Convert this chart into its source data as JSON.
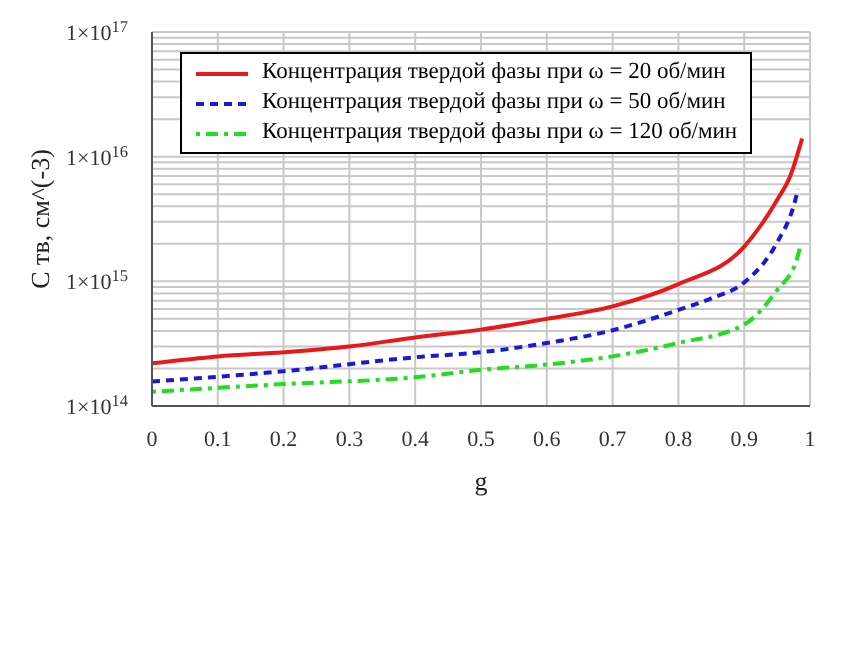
{
  "chart_data": {
    "type": "line",
    "xlabel": "g",
    "ylabel": "C тв, см^(-3)",
    "log": "y",
    "grid": true,
    "legend": "top left",
    "marker": "none",
    "xlim": [
      0,
      1
    ],
    "xticks": [
      0,
      0.1,
      0.2,
      0.3,
      0.4,
      0.5,
      0.6,
      0.7,
      0.8,
      0.9,
      1
    ],
    "ylim": [
      100000000000000.0,
      1e+17
    ],
    "yticks": [
      {
        "value": 100000000000000.0,
        "label": "1×10$^{14}$"
      },
      {
        "value": 200000000000000.0,
        "label": null
      },
      {
        "value": 300000000000000.0,
        "label": null
      },
      {
        "value": 400000000000000.0,
        "label": null
      },
      {
        "value": 500000000000000.0,
        "label": null
      },
      {
        "value": 600000000000000.0,
        "label": null
      },
      {
        "value": 700000000000000.0,
        "label": null
      },
      {
        "value": 800000000000000.0,
        "label": null
      },
      {
        "value": 900000000000000.0,
        "label": null
      },
      {
        "value": 1000000000000000.0,
        "label": "1×10$^{15}$"
      },
      {
        "value": 2000000000000000.0,
        "label": null
      },
      {
        "value": 3000000000000000.0,
        "label": null
      },
      {
        "value": 4000000000000000.0,
        "label": null
      },
      {
        "value": 5000000000000000.0,
        "label": null
      },
      {
        "value": 6000000000000000.0,
        "label": null
      },
      {
        "value": 7000000000000000.0,
        "label": null
      },
      {
        "value": 8000000000000000.0,
        "label": null
      },
      {
        "value": 9000000000000000.0,
        "label": null
      },
      {
        "value": 1e+16,
        "label": "1×10$^{16}$"
      },
      {
        "value": 2e+16,
        "label": null
      },
      {
        "value": 3e+16,
        "label": null
      },
      {
        "value": 4e+16,
        "label": null
      },
      {
        "value": 5e+16,
        "label": null
      },
      {
        "value": 6e+16,
        "label": null
      },
      {
        "value": 7e+16,
        "label": null
      },
      {
        "value": 8e+16,
        "label": null
      },
      {
        "value": 9e+16,
        "label": null
      },
      {
        "value": 1e+17,
        "label": "1×10$^{17}$"
      }
    ],
    "series": [
      {
        "name": "Концентрация твердой фазы при ω = 20 об/мин",
        "color": "#e8191b",
        "line_style": "solid",
        "x": [
          0,
          0.1,
          0.2,
          0.3,
          0.4,
          0.5,
          0.6,
          0.7,
          0.8,
          0.9,
          0.95,
          0.97,
          0.988
        ],
        "values": [
          220000000000000.0,
          250000000000000.0,
          270000000000000.0,
          300000000000000.0,
          355000000000000.0,
          410000000000000.0,
          500000000000000.0,
          630000000000000.0,
          950000000000000.0,
          1900000000000000.0,
          4500000000000000.0,
          7000000000000000.0,
          1.4e+16
        ]
      },
      {
        "name": "Концентрация твердой фазы при ω = 50 об/мин",
        "color": "#1a1ad6",
        "line_style": "dashed",
        "x": [
          0,
          0.2,
          0.4,
          0.5,
          0.6,
          0.7,
          0.8,
          0.85,
          0.9,
          0.95,
          0.975,
          0.982
        ],
        "values": [
          157000000000000.0,
          190000000000000.0,
          246000000000000.0,
          270000000000000.0,
          320000000000000.0,
          405000000000000.0,
          590000000000000.0,
          730000000000000.0,
          980000000000000.0,
          2050000000000000.0,
          4000000000000000.0,
          5500000000000000.0
        ]
      },
      {
        "name": "Концентрация твердой фазы при ω = 120 об/мин",
        "color": "#22dd22",
        "line_style": "dotted",
        "x": [
          0,
          0.2,
          0.4,
          0.5,
          0.6,
          0.7,
          0.8,
          0.9,
          0.95,
          0.98,
          0.985
        ],
        "values": [
          130000000000000.0,
          150000000000000.0,
          170000000000000.0,
          195000000000000.0,
          215000000000000.0,
          250000000000000.0,
          320000000000000.0,
          450000000000000.0,
          850000000000000.0,
          1500000000000000.0,
          1900000000000000.0
        ]
      }
    ]
  }
}
